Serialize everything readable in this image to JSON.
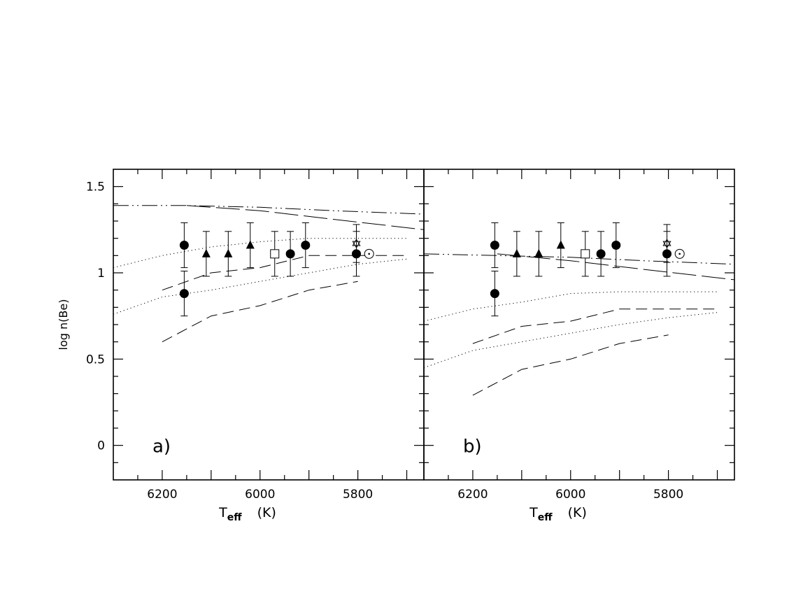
{
  "chart_data": [
    {
      "type": "scatter",
      "panel_label": "a)",
      "xlabel": "T",
      "xlabel_sub": "eff",
      "xlabel_unit": "(K)",
      "ylabel": "log  n(Be)",
      "xlim": [
        6300,
        5665
      ],
      "ylim": [
        -0.2,
        1.6
      ],
      "xticks": [
        6200,
        6000,
        5800
      ],
      "yticks": [
        0,
        0.5,
        1,
        1.5
      ],
      "ytick_labels": [
        "0",
        "0.5",
        "1",
        "1.5"
      ],
      "points": [
        {
          "marker": "circle",
          "x": 6155,
          "y": 1.16,
          "err": 0.13
        },
        {
          "marker": "circle",
          "x": 6155,
          "y": 0.88,
          "err": 0.13
        },
        {
          "marker": "triangle",
          "x": 6110,
          "y": 1.11,
          "err": 0.13
        },
        {
          "marker": "triangle",
          "x": 6065,
          "y": 1.11,
          "err": 0.13
        },
        {
          "marker": "triangle",
          "x": 6020,
          "y": 1.16,
          "err": 0.13
        },
        {
          "marker": "square",
          "x": 5970,
          "y": 1.11,
          "err": 0.13
        },
        {
          "marker": "circle",
          "x": 5938,
          "y": 1.11,
          "err": 0.13
        },
        {
          "marker": "circle",
          "x": 5907,
          "y": 1.16,
          "err": 0.13
        },
        {
          "marker": "circle",
          "x": 5803,
          "y": 1.11,
          "err": 0.13
        },
        {
          "marker": "star",
          "x": 5803,
          "y": 1.17,
          "err": 0.11
        },
        {
          "marker": "sun",
          "x": 5777,
          "y": 1.11,
          "err": 0
        }
      ],
      "series": [
        {
          "style": "dotdash",
          "x": [
            6300,
            6150,
            6000,
            5850,
            5665
          ],
          "y": [
            1.39,
            1.39,
            1.38,
            1.36,
            1.34
          ]
        },
        {
          "style": "longdash",
          "x": [
            6150,
            6000,
            5850,
            5665
          ],
          "y": [
            1.39,
            1.36,
            1.31,
            1.25
          ]
        },
        {
          "style": "dotted",
          "x": [
            6300,
            6200,
            6100,
            6000,
            5900,
            5800,
            5700
          ],
          "y": [
            1.03,
            1.1,
            1.15,
            1.18,
            1.2,
            1.2,
            1.2
          ]
        },
        {
          "style": "dashed",
          "x": [
            6200,
            6100,
            6000,
            5900,
            5800,
            5700
          ],
          "y": [
            0.9,
            1.0,
            1.03,
            1.1,
            1.1,
            1.1
          ]
        },
        {
          "style": "dotted",
          "x": [
            6300,
            6200,
            6100,
            6000,
            5900,
            5800,
            5700
          ],
          "y": [
            0.76,
            0.86,
            0.9,
            0.95,
            1.0,
            1.05,
            1.08
          ]
        },
        {
          "style": "dashed",
          "x": [
            6200,
            6100,
            6000,
            5900,
            5800
          ],
          "y": [
            0.6,
            0.75,
            0.81,
            0.9,
            0.95
          ]
        }
      ]
    },
    {
      "type": "scatter",
      "panel_label": "b)",
      "xlabel": "T",
      "xlabel_sub": "eff",
      "xlabel_unit": "(K)",
      "ylabel": "",
      "xlim": [
        6300,
        5665
      ],
      "ylim": [
        -0.2,
        1.6
      ],
      "xticks": [
        6200,
        6000,
        5800
      ],
      "yticks": [
        0,
        0.5,
        1,
        1.5
      ],
      "points": [
        {
          "marker": "circle",
          "x": 6155,
          "y": 1.16,
          "err": 0.13
        },
        {
          "marker": "circle",
          "x": 6155,
          "y": 0.88,
          "err": 0.13
        },
        {
          "marker": "triangle",
          "x": 6110,
          "y": 1.11,
          "err": 0.13
        },
        {
          "marker": "triangle",
          "x": 6065,
          "y": 1.11,
          "err": 0.13
        },
        {
          "marker": "triangle",
          "x": 6020,
          "y": 1.16,
          "err": 0.13
        },
        {
          "marker": "square",
          "x": 5970,
          "y": 1.11,
          "err": 0.13
        },
        {
          "marker": "circle",
          "x": 5938,
          "y": 1.11,
          "err": 0.13
        },
        {
          "marker": "circle",
          "x": 5907,
          "y": 1.16,
          "err": 0.13
        },
        {
          "marker": "circle",
          "x": 5803,
          "y": 1.11,
          "err": 0.13
        },
        {
          "marker": "star",
          "x": 5803,
          "y": 1.17,
          "err": 0.11
        },
        {
          "marker": "sun",
          "x": 5777,
          "y": 1.11,
          "err": 0
        }
      ],
      "series": [
        {
          "style": "dotdash",
          "x": [
            6300,
            6150,
            6000,
            5850,
            5665
          ],
          "y": [
            1.11,
            1.1,
            1.09,
            1.07,
            1.05
          ]
        },
        {
          "style": "longdash",
          "x": [
            6150,
            6000,
            5850,
            5665
          ],
          "y": [
            1.11,
            1.07,
            1.02,
            0.96
          ]
        },
        {
          "style": "dotted",
          "x": [
            6300,
            6200,
            6100,
            6000,
            5900,
            5800,
            5700
          ],
          "y": [
            0.72,
            0.79,
            0.83,
            0.88,
            0.89,
            0.89,
            0.89
          ]
        },
        {
          "style": "dashed",
          "x": [
            6200,
            6100,
            6000,
            5900,
            5800,
            5700
          ],
          "y": [
            0.59,
            0.69,
            0.72,
            0.79,
            0.79,
            0.79
          ]
        },
        {
          "style": "dotted",
          "x": [
            6300,
            6200,
            6100,
            6000,
            5900,
            5800,
            5700
          ],
          "y": [
            0.45,
            0.55,
            0.6,
            0.65,
            0.7,
            0.74,
            0.77
          ]
        },
        {
          "style": "dashed",
          "x": [
            6200,
            6100,
            6000,
            5900,
            5800
          ],
          "y": [
            0.29,
            0.44,
            0.5,
            0.59,
            0.64
          ]
        }
      ]
    }
  ]
}
